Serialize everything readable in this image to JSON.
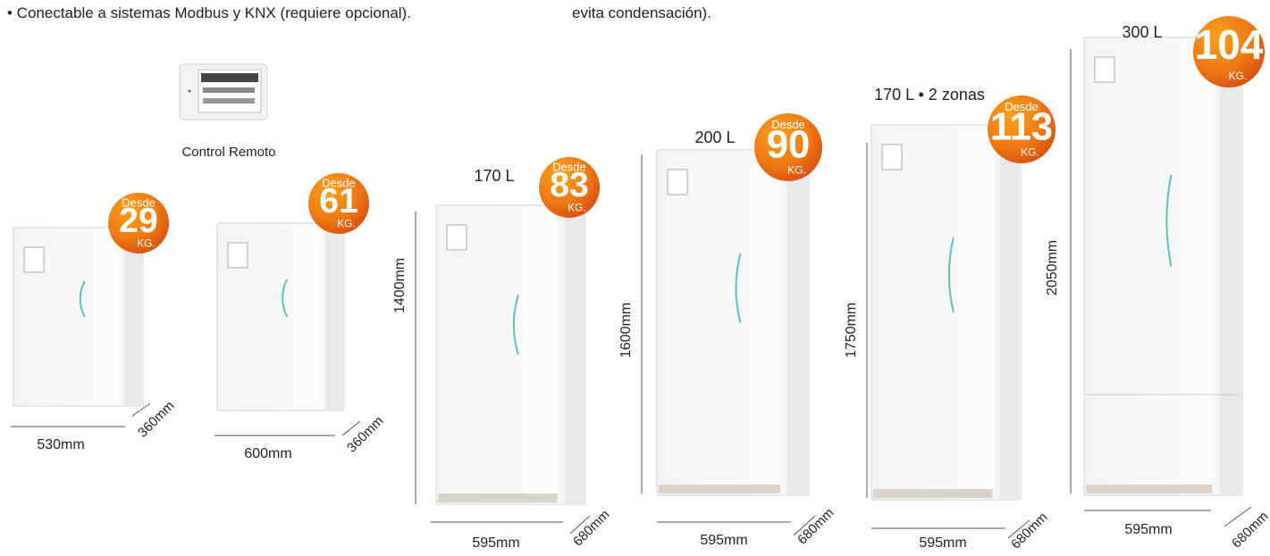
{
  "header": {
    "bullet": "• Conectable a sistemas Modbus y KNX (requiere opcional).",
    "note": "evita condensación)."
  },
  "remote": {
    "label": "Control Remoto"
  },
  "products": [
    {
      "badge": {
        "prefix": "Desde",
        "weight": "29",
        "unit": "KG."
      },
      "width": "530mm",
      "depth": "360mm"
    },
    {
      "badge": {
        "prefix": "Desde",
        "weight": "61",
        "unit": "KG."
      },
      "width": "600mm",
      "depth": "360mm"
    },
    {
      "capacity": "170 L",
      "badge": {
        "prefix": "Desde",
        "weight": "83",
        "unit": "KG."
      },
      "height": "1400mm",
      "width": "595mm",
      "depth": "680mm"
    },
    {
      "capacity": "200 L",
      "badge": {
        "prefix": "Desde",
        "weight": "90",
        "unit": "KG."
      },
      "height": "1600mm",
      "width": "595mm",
      "depth": "680mm"
    },
    {
      "capacity": "170 L • 2 zonas",
      "badge": {
        "prefix": "Desde",
        "weight": "113",
        "unit": "KG."
      },
      "height": "1750mm",
      "width": "595mm",
      "depth": "680mm"
    },
    {
      "capacity": "300 L",
      "badge": {
        "weight": "104",
        "unit": "KG."
      },
      "height": "2050mm",
      "width": "595mm",
      "depth": "680mm"
    }
  ]
}
